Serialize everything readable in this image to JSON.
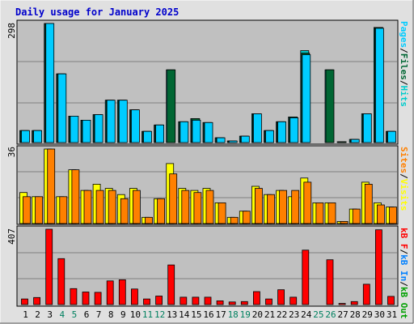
{
  "title": "Daily usage for January 2025",
  "colors": {
    "frame_bg": "#e0e0e0",
    "plot_bg": "#c0c0c0",
    "grid": "#808080",
    "title": "#0000cc",
    "hits": "#00cccc",
    "files": "#006633",
    "pages": "#00ccff",
    "visits": "#ffff00",
    "sites": "#ff8000",
    "kbf": "#ff0000",
    "kbin": "#0080ff",
    "kbout": "#00a000",
    "weekend_day": "#00805f",
    "weekday": "#000000"
  },
  "axis_max": {
    "top": "298",
    "middle": "36",
    "bottom": "407"
  },
  "legend": {
    "top": [
      "Pages",
      "/",
      "Files",
      "/",
      "Hits"
    ],
    "middle": [
      "Sites",
      "/",
      "Visits"
    ],
    "bottom": [
      "kB F",
      "/",
      "kB In",
      "/",
      "kB Out"
    ]
  },
  "chart_data": [
    {
      "type": "bar",
      "panel": "hits-files-pages",
      "categories": [
        "1",
        "2",
        "3",
        "4",
        "5",
        "6",
        "7",
        "8",
        "9",
        "10",
        "11",
        "12",
        "13",
        "14",
        "15",
        "16",
        "17",
        "18",
        "19",
        "20",
        "21",
        "22",
        "23",
        "24",
        "25",
        "26",
        "27",
        "28",
        "29",
        "30",
        "31"
      ],
      "ylim": [
        0,
        298
      ],
      "series": [
        {
          "name": "Hits",
          "values": [
            30,
            30,
            298,
            172,
            66,
            56,
            70,
            106,
            106,
            82,
            28,
            44,
            182,
            52,
            60,
            50,
            12,
            4,
            16,
            72,
            30,
            52,
            64,
            230,
            0,
            182,
            2,
            8,
            72,
            288,
            28
          ]
        },
        {
          "name": "Files",
          "values": [
            30,
            30,
            298,
            172,
            66,
            56,
            70,
            106,
            106,
            82,
            28,
            44,
            182,
            52,
            60,
            50,
            12,
            4,
            16,
            72,
            30,
            52,
            64,
            224,
            0,
            182,
            2,
            8,
            72,
            288,
            28
          ]
        },
        {
          "name": "Pages",
          "values": [
            30,
            30,
            298,
            172,
            66,
            56,
            70,
            106,
            106,
            82,
            28,
            44,
            0,
            52,
            56,
            50,
            12,
            4,
            16,
            72,
            30,
            52,
            62,
            220,
            0,
            0,
            0,
            8,
            72,
            286,
            28
          ]
        }
      ]
    },
    {
      "type": "bar",
      "panel": "visits-sites",
      "categories": [
        "1",
        "2",
        "3",
        "4",
        "5",
        "6",
        "7",
        "8",
        "9",
        "10",
        "11",
        "12",
        "13",
        "14",
        "15",
        "16",
        "17",
        "18",
        "19",
        "20",
        "21",
        "22",
        "23",
        "24",
        "25",
        "26",
        "27",
        "28",
        "29",
        "30",
        "31"
      ],
      "ylim": [
        0,
        36
      ],
      "series": [
        {
          "name": "Visits",
          "values": [
            15,
            13,
            36,
            13,
            26,
            16,
            19,
            17,
            14,
            17,
            3,
            12,
            29,
            17,
            16,
            17,
            10,
            3,
            6,
            18,
            14,
            16,
            13,
            22,
            10,
            10,
            1,
            7,
            20,
            10,
            8
          ]
        },
        {
          "name": "Sites",
          "values": [
            13,
            13,
            36,
            13,
            26,
            16,
            16,
            16,
            12,
            16,
            3,
            12,
            24,
            16,
            15,
            16,
            10,
            3,
            6,
            17,
            14,
            16,
            16,
            20,
            10,
            10,
            1,
            7,
            19,
            9,
            8
          ]
        }
      ]
    },
    {
      "type": "bar",
      "panel": "kbytes",
      "categories": [
        "1",
        "2",
        "3",
        "4",
        "5",
        "6",
        "7",
        "8",
        "9",
        "10",
        "11",
        "12",
        "13",
        "14",
        "15",
        "16",
        "17",
        "18",
        "19",
        "20",
        "21",
        "22",
        "23",
        "24",
        "25",
        "26",
        "27",
        "28",
        "29",
        "30",
        "31"
      ],
      "ylim": [
        0,
        407
      ],
      "series": [
        {
          "name": "kB F",
          "values": [
            30,
            38,
            407,
            248,
            86,
            68,
            66,
            128,
            134,
            84,
            30,
            46,
            214,
            40,
            40,
            40,
            20,
            14,
            16,
            70,
            30,
            80,
            40,
            294,
            0,
            242,
            6,
            16,
            110,
            404,
            44
          ]
        }
      ]
    }
  ]
}
